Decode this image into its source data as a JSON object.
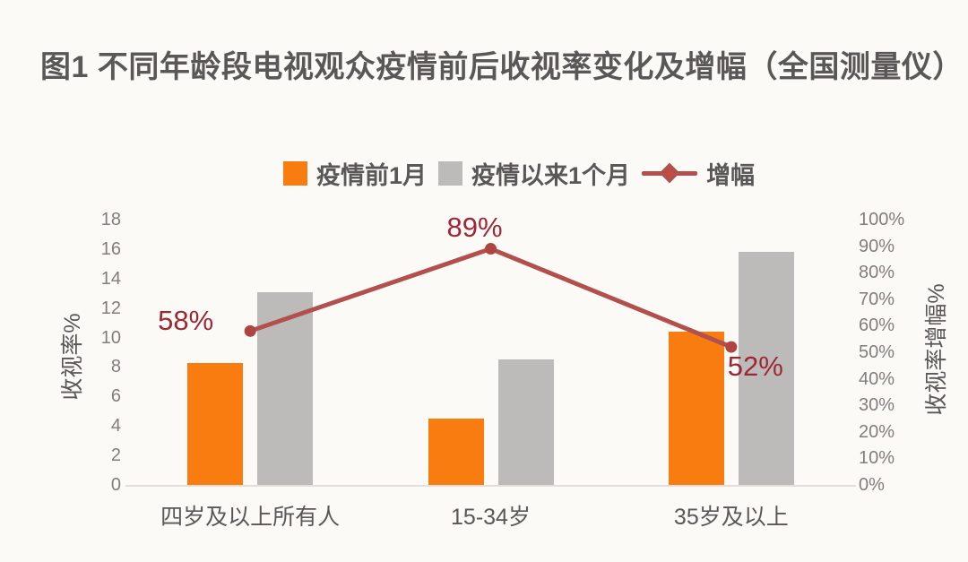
{
  "page": {
    "background": "#FCFAF7"
  },
  "title": {
    "text": "图1 不同年龄段电视观众疫情前后收视率变化及增幅（全国测量仪）",
    "color": "#5A5757"
  },
  "chart_data": {
    "type": "combo_bar_line",
    "title": "图1 不同年龄段电视观众疫情前后收视率变化及增幅（全国测量仪）",
    "categories": [
      "四岁及以上所有人",
      "15-34岁",
      "35岁及以上"
    ],
    "series": [
      {
        "name": "疫情前1月",
        "type": "bar",
        "axis": "left",
        "color": "#F87C10",
        "values": [
          8.3,
          4.5,
          10.4
        ]
      },
      {
        "name": "疫情以来1个月",
        "type": "bar",
        "axis": "left",
        "color": "#BDBBB9",
        "values": [
          13.1,
          8.5,
          15.8
        ]
      },
      {
        "name": "增幅",
        "type": "line",
        "axis": "right",
        "color": "#B1504C",
        "marker_color": "#AE4540",
        "label_color": "#9C2836",
        "values": [
          58,
          89,
          52
        ],
        "data_labels": [
          "58%",
          "89%",
          "52%"
        ]
      }
    ],
    "left_axis": {
      "title": "收视率%",
      "min": 0,
      "max": 18,
      "step": 2,
      "ticks": [
        "0",
        "2",
        "4",
        "6",
        "8",
        "10",
        "12",
        "14",
        "16",
        "18"
      ]
    },
    "right_axis": {
      "title": "收视率增幅%",
      "min": 0,
      "max": 100,
      "step": 10,
      "ticks": [
        "0%",
        "10%",
        "20%",
        "30%",
        "40%",
        "50%",
        "60%",
        "70%",
        "80%",
        "90%",
        "100%"
      ]
    },
    "grid": false,
    "legend_position": "top",
    "plot_bg": "#FCFAF7"
  },
  "colors": {
    "text_dark": "#5A5757",
    "tick": "#807D7C",
    "baseline": "#E2DFDB"
  }
}
